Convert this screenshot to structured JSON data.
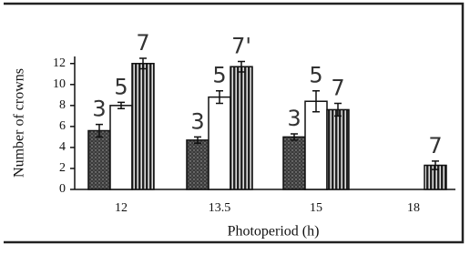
{
  "chart_data": {
    "type": "bar",
    "y_label": "Number of crowns",
    "x_label": "Photoperiod (h)",
    "categories": [
      "12",
      "13.5",
      "15",
      "18"
    ],
    "series": [
      {
        "color": "#3a3a3a",
        "pattern": "stipple",
        "values": [
          5.6,
          4.7,
          5.0,
          null
        ],
        "errors": [
          0.6,
          0.3,
          0.3,
          null
        ],
        "handwritten_labels": [
          "3",
          "3",
          "3",
          null
        ]
      },
      {
        "color": "#ffffff",
        "pattern": "plain",
        "values": [
          8.0,
          8.8,
          8.4,
          null
        ],
        "errors": [
          0.3,
          0.6,
          1.0,
          null
        ],
        "handwritten_labels": [
          "5",
          "5",
          "5",
          null
        ]
      },
      {
        "color": "#555555",
        "pattern": "stripe",
        "values": [
          12.0,
          11.7,
          7.6,
          2.3
        ],
        "errors": [
          0.5,
          0.5,
          0.6,
          0.4
        ],
        "handwritten_labels": [
          "7",
          "7'",
          "7",
          "7"
        ]
      }
    ],
    "ylim": [
      0,
      12.5
    ],
    "yticks": [
      0,
      2,
      4,
      6,
      8,
      10,
      12
    ],
    "grid": false
  }
}
